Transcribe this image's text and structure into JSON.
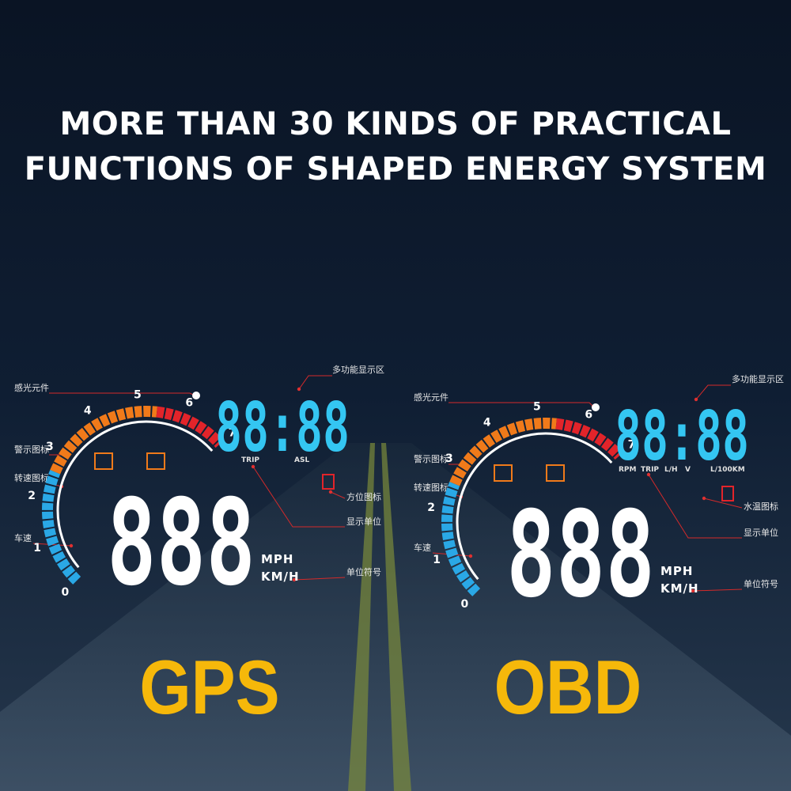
{
  "header": {
    "title_lines": [
      "MORE THAN 30 KINDS OF PRACTICAL",
      "FUNCTIONS OF SHAPED ENERGY SYSTEM"
    ]
  },
  "panels": [
    {
      "label": "GPS",
      "callouts": [
        "感光元件",
        "多功能显示区",
        "警示图标",
        "转速图标",
        "车速",
        "方位图标",
        "显示单位",
        "单位符号"
      ],
      "scale": [
        0,
        1,
        2,
        3,
        4,
        5,
        6,
        7
      ],
      "display": "88:88",
      "display_units": [
        "TRIP",
        "ASL"
      ],
      "speed": "888",
      "speed_units": [
        "MPH",
        "KM/H"
      ]
    },
    {
      "label": "OBD",
      "callouts": [
        "感光元件",
        "多功能显示区",
        "警示图标",
        "转速图标",
        "车速",
        "水温图标",
        "显示单位",
        "单位符号"
      ],
      "scale": [
        0,
        1,
        2,
        3,
        4,
        5,
        6,
        7
      ],
      "display": "88:88",
      "display_units": [
        "RPM",
        "TRIP",
        "L/H",
        "V",
        "L/100KM"
      ],
      "speed": "888",
      "speed_units": [
        "MPH",
        "KM/H"
      ]
    }
  ]
}
